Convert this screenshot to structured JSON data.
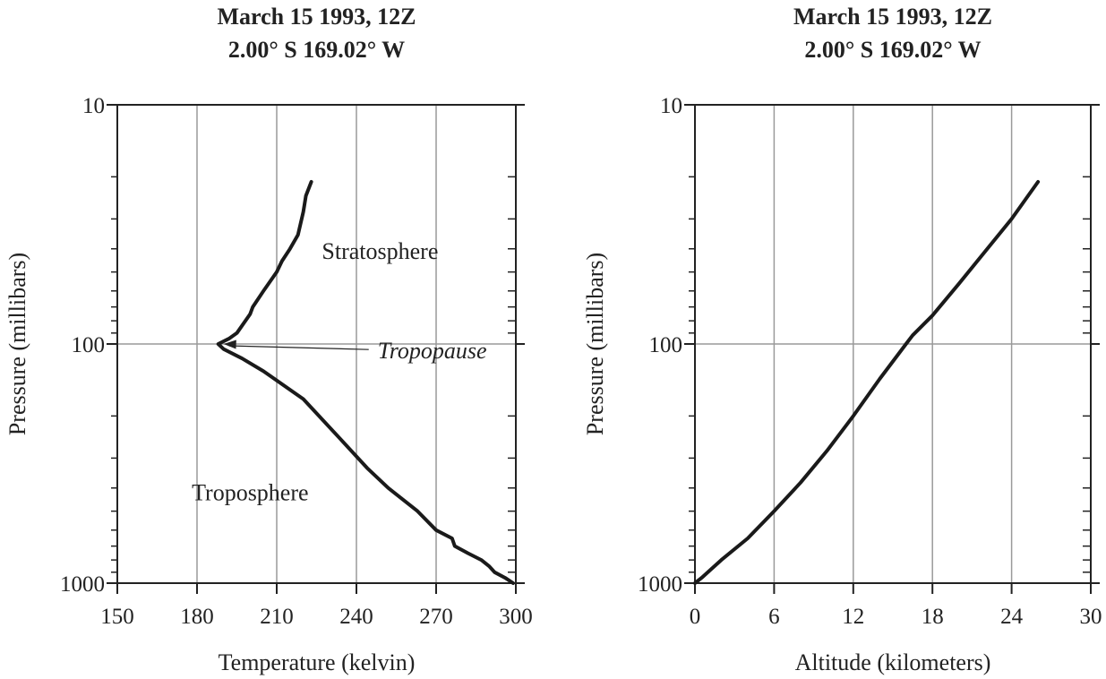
{
  "chart_data": [
    {
      "type": "line",
      "title": "March 15 1993, 12Z",
      "subtitle": "2.00° S 169.02° W",
      "xlabel": "Temperature (kelvin)",
      "ylabel": "Pressure (millibars)",
      "xlim": [
        150,
        300
      ],
      "ylim": [
        1000,
        10
      ],
      "yscale": "log",
      "x_ticks": [
        "150",
        "180",
        "210",
        "240",
        "270",
        "300"
      ],
      "y_ticks": [
        "10",
        "100",
        "1000"
      ],
      "grid": true,
      "series": [
        {
          "x": [
            299,
            296,
            292,
            290,
            287,
            282,
            277,
            276,
            270,
            263,
            252,
            244,
            234,
            220,
            205,
            197,
            190,
            188,
            192,
            195,
            200,
            201,
            205,
            210,
            212,
            215,
            218,
            220,
            221,
            223
          ],
          "y": [
            1000,
            950,
            900,
            850,
            800,
            750,
            700,
            650,
            600,
            500,
            400,
            330,
            250,
            170,
            130,
            115,
            105,
            100,
            95,
            90,
            75,
            70,
            60,
            50,
            45,
            40,
            35,
            28,
            24,
            21
          ]
        }
      ],
      "annotations": [
        {
          "text": "Stratosphere",
          "x": 227,
          "y": 44
        },
        {
          "text": "Tropopause",
          "x": 248,
          "y": 115,
          "arrow_to": [
            190,
            100
          ],
          "style": "italic"
        },
        {
          "text": "Troposphere",
          "x": 178,
          "y": 450
        }
      ]
    },
    {
      "type": "line",
      "title": "March 15 1993, 12Z",
      "subtitle": "2.00° S 169.02° W",
      "xlabel": "Altitude (kilometers)",
      "ylabel": "Pressure (millibars)",
      "xlim": [
        0,
        30
      ],
      "ylim": [
        1000,
        10
      ],
      "yscale": "log",
      "x_ticks": [
        "0",
        "6",
        "12",
        "18",
        "24",
        "30"
      ],
      "y_ticks": [
        "10",
        "100",
        "1000"
      ],
      "grid": true,
      "series": [
        {
          "x": [
            0,
            0.5,
            2,
            4,
            6,
            8,
            10,
            12,
            14,
            16,
            16.5,
            18,
            20,
            22,
            24,
            26
          ],
          "y": [
            1000,
            950,
            800,
            650,
            500,
            380,
            280,
            200,
            140,
            100,
            92,
            76,
            56,
            41,
            30,
            21
          ]
        }
      ]
    }
  ]
}
